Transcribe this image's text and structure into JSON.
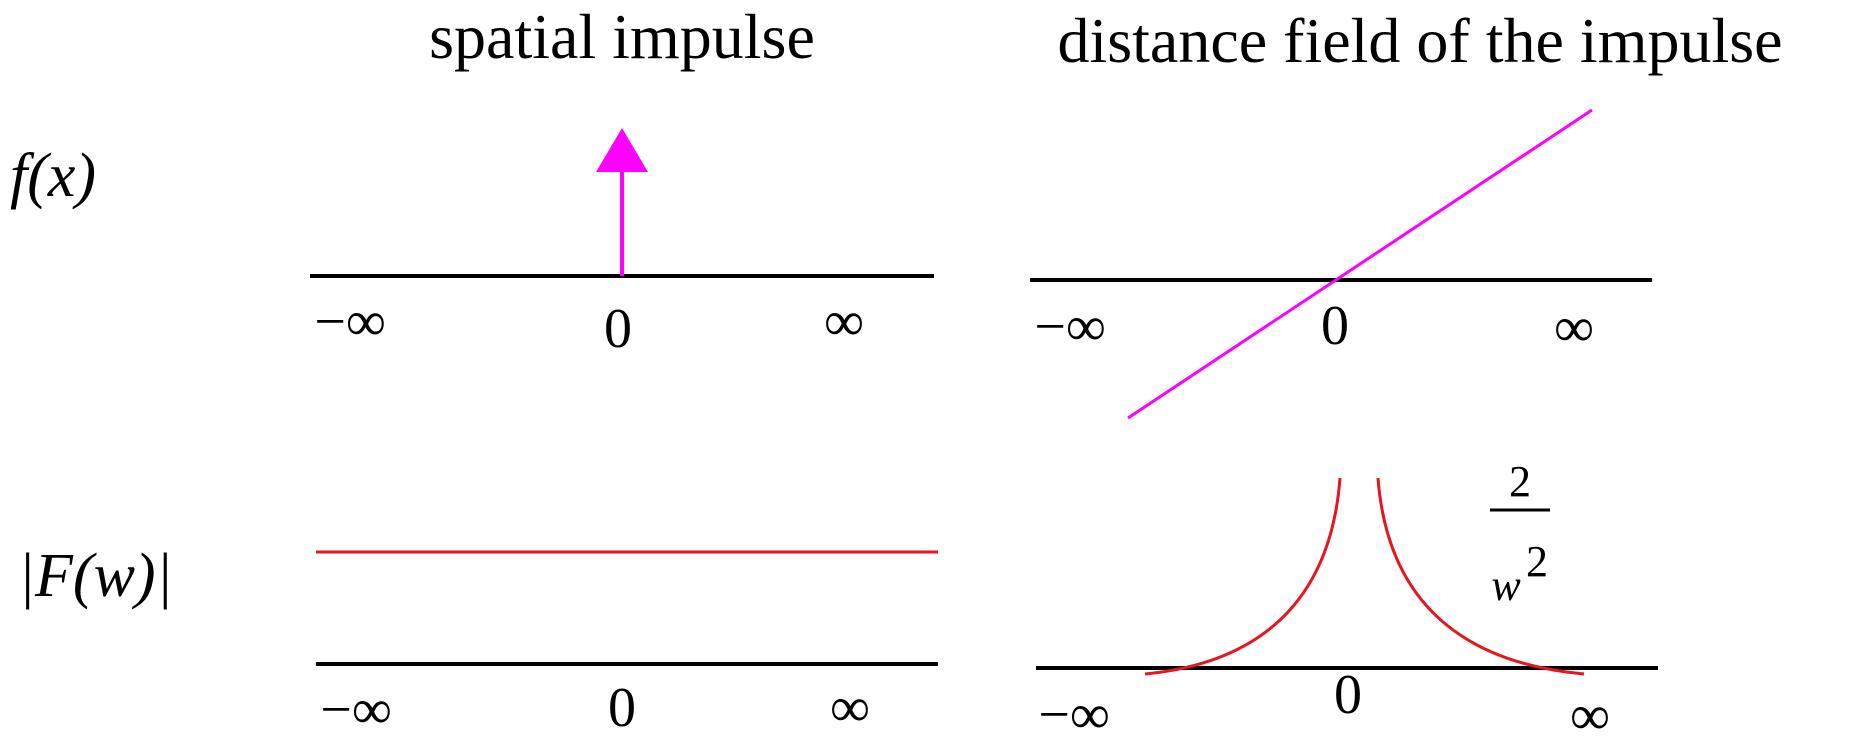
{
  "titles": {
    "left": "spatial impulse",
    "right": "distance field of the impulse"
  },
  "row_labels": {
    "top": "f(x)",
    "bottom": "|F(w)|"
  },
  "tick_labels": {
    "neg_inf": "−∞",
    "zero": "0",
    "pos_inf": "∞"
  },
  "formula": {
    "numerator": "2",
    "denominator": "w",
    "exponent": "2"
  },
  "colors": {
    "axis": "#000000",
    "spatial": "#ff00ff",
    "spectrum": "#e8141e"
  }
}
